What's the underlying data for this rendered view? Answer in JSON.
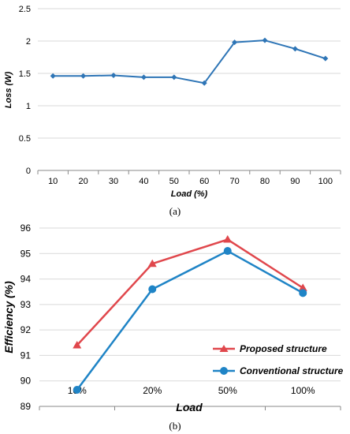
{
  "chart_data": [
    {
      "type": "line",
      "caption": "(a)",
      "xlabel": "Load (%)",
      "ylabel": "Loss (W)",
      "categories": [
        "10",
        "20",
        "30",
        "40",
        "50",
        "60",
        "70",
        "80",
        "90",
        "100"
      ],
      "series": [
        {
          "values": [
            1.46,
            1.46,
            1.47,
            1.44,
            1.44,
            1.35,
            1.98,
            2.01,
            1.88,
            1.73
          ],
          "color": "#2e75b6",
          "marker": "diamond"
        }
      ],
      "ylim": [
        0,
        2.5
      ],
      "yticks": [
        "0",
        "0.5",
        "1",
        "1.5",
        "2",
        "2.5"
      ],
      "grid": "horizontal"
    },
    {
      "type": "line",
      "caption": "(b)",
      "xlabel": "Load",
      "ylabel": "Efficiency (%)",
      "categories": [
        "10%",
        "20%",
        "50%",
        "100%"
      ],
      "series": [
        {
          "name": "Proposed structure",
          "values": [
            91.4,
            94.6,
            95.55,
            93.65
          ],
          "color": "#e0474c",
          "marker": "triangle"
        },
        {
          "name": "Conventional structure",
          "values": [
            89.65,
            93.6,
            95.1,
            93.45
          ],
          "color": "#1f84c6",
          "marker": "circle"
        }
      ],
      "ylim": [
        89,
        96
      ],
      "yticks": [
        "89",
        "90",
        "91",
        "92",
        "93",
        "94",
        "95",
        "96"
      ],
      "grid": "horizontal",
      "legend": "bottom-right"
    }
  ]
}
